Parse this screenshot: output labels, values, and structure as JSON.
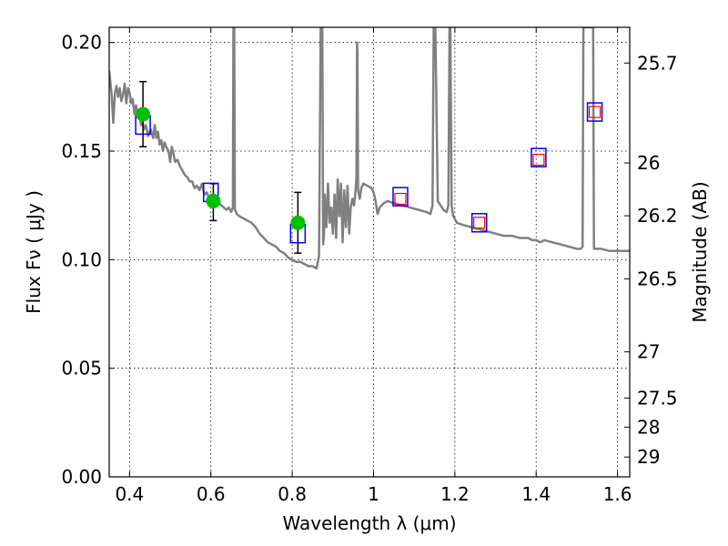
{
  "chart_data": {
    "type": "scatter",
    "xlabel": "Wavelength  λ (μm)",
    "ylabel": "Flux  Fν  ( μJy )",
    "y2label": "Magnitude (AB)",
    "xlim": [
      0.35,
      1.63
    ],
    "ylim": [
      0.0,
      0.207
    ],
    "grid": true,
    "x_ticks": [
      {
        "value": 0.4,
        "label": "0.4"
      },
      {
        "value": 0.6,
        "label": "0.6"
      },
      {
        "value": 0.8,
        "label": "0.8"
      },
      {
        "value": 1.0,
        "label": "1"
      },
      {
        "value": 1.2,
        "label": "1.2"
      },
      {
        "value": 1.4,
        "label": "1.4"
      },
      {
        "value": 1.6,
        "label": "1.6"
      }
    ],
    "y_ticks": [
      {
        "value": 0.0,
        "label": "0.00"
      },
      {
        "value": 0.05,
        "label": "0.05"
      },
      {
        "value": 0.1,
        "label": "0.10"
      },
      {
        "value": 0.15,
        "label": "0.15"
      },
      {
        "value": 0.2,
        "label": "0.20"
      }
    ],
    "mag_ticks": [
      {
        "value": 25.7,
        "label": "25.7"
      },
      {
        "value": 26.0,
        "label": "26"
      },
      {
        "value": 26.2,
        "label": "26.2"
      },
      {
        "value": 26.5,
        "label": "26.5"
      },
      {
        "value": 27.0,
        "label": "27"
      },
      {
        "value": 27.5,
        "label": "27.5"
      },
      {
        "value": 28.0,
        "label": "28"
      },
      {
        "value": 29.0,
        "label": "29"
      }
    ],
    "series": [
      {
        "kind": "sed_model_spectrum",
        "color": "#808080",
        "points": [
          [
            0.35,
            0.187
          ],
          [
            0.356,
            0.176
          ],
          [
            0.36,
            0.163
          ],
          [
            0.364,
            0.177
          ],
          [
            0.368,
            0.18
          ],
          [
            0.372,
            0.175
          ],
          [
            0.376,
            0.179
          ],
          [
            0.38,
            0.173
          ],
          [
            0.384,
            0.176
          ],
          [
            0.388,
            0.181
          ],
          [
            0.392,
            0.172
          ],
          [
            0.396,
            0.179
          ],
          [
            0.4,
            0.177
          ],
          [
            0.404,
            0.172
          ],
          [
            0.408,
            0.174
          ],
          [
            0.412,
            0.167
          ],
          [
            0.416,
            0.171
          ],
          [
            0.42,
            0.166
          ],
          [
            0.424,
            0.169
          ],
          [
            0.428,
            0.162
          ],
          [
            0.432,
            0.163
          ],
          [
            0.436,
            0.16
          ],
          [
            0.44,
            0.162
          ],
          [
            0.446,
            0.157
          ],
          [
            0.452,
            0.16
          ],
          [
            0.458,
            0.156
          ],
          [
            0.462,
            0.162
          ],
          [
            0.466,
            0.156
          ],
          [
            0.47,
            0.159
          ],
          [
            0.474,
            0.153
          ],
          [
            0.478,
            0.155
          ],
          [
            0.482,
            0.15
          ],
          [
            0.486,
            0.154
          ],
          [
            0.49,
            0.152
          ],
          [
            0.496,
            0.15
          ],
          [
            0.5,
            0.145
          ],
          [
            0.504,
            0.152
          ],
          [
            0.508,
            0.149
          ],
          [
            0.512,
            0.145
          ],
          [
            0.518,
            0.146
          ],
          [
            0.524,
            0.143
          ],
          [
            0.53,
            0.141
          ],
          [
            0.536,
            0.139
          ],
          [
            0.542,
            0.138
          ],
          [
            0.548,
            0.136
          ],
          [
            0.554,
            0.136
          ],
          [
            0.56,
            0.133
          ],
          [
            0.566,
            0.134
          ],
          [
            0.572,
            0.132
          ],
          [
            0.578,
            0.135
          ],
          [
            0.584,
            0.13
          ],
          [
            0.59,
            0.131
          ],
          [
            0.596,
            0.128
          ],
          [
            0.602,
            0.13
          ],
          [
            0.608,
            0.128
          ],
          [
            0.614,
            0.127
          ],
          [
            0.62,
            0.126
          ],
          [
            0.626,
            0.125
          ],
          [
            0.632,
            0.124
          ],
          [
            0.638,
            0.123
          ],
          [
            0.644,
            0.124
          ],
          [
            0.65,
            0.122
          ],
          [
            0.654,
            0.124
          ],
          [
            0.6555,
            0.207
          ],
          [
            0.6575,
            0.207
          ],
          [
            0.659,
            0.123
          ],
          [
            0.664,
            0.121
          ],
          [
            0.67,
            0.12
          ],
          [
            0.68,
            0.119
          ],
          [
            0.69,
            0.118
          ],
          [
            0.7,
            0.117
          ],
          [
            0.71,
            0.115
          ],
          [
            0.72,
            0.112
          ],
          [
            0.73,
            0.11
          ],
          [
            0.74,
            0.108
          ],
          [
            0.75,
            0.107
          ],
          [
            0.76,
            0.106
          ],
          [
            0.77,
            0.104
          ],
          [
            0.78,
            0.103
          ],
          [
            0.79,
            0.101
          ],
          [
            0.8,
            0.1
          ],
          [
            0.81,
            0.099
          ],
          [
            0.82,
            0.099
          ],
          [
            0.83,
            0.098
          ],
          [
            0.84,
            0.097
          ],
          [
            0.85,
            0.097
          ],
          [
            0.86,
            0.096
          ],
          [
            0.866,
            0.102
          ],
          [
            0.87,
            0.207
          ],
          [
            0.874,
            0.207
          ],
          [
            0.876,
            0.107
          ],
          [
            0.878,
            0.112
          ],
          [
            0.88,
            0.13
          ],
          [
            0.884,
            0.115
          ],
          [
            0.888,
            0.135
          ],
          [
            0.892,
            0.117
          ],
          [
            0.896,
            0.124
          ],
          [
            0.9,
            0.112
          ],
          [
            0.904,
            0.13
          ],
          [
            0.908,
            0.11
          ],
          [
            0.912,
            0.137
          ],
          [
            0.916,
            0.12
          ],
          [
            0.92,
            0.135
          ],
          [
            0.924,
            0.108
          ],
          [
            0.928,
            0.132
          ],
          [
            0.932,
            0.115
          ],
          [
            0.936,
            0.134
          ],
          [
            0.94,
            0.112
          ],
          [
            0.944,
            0.124
          ],
          [
            0.948,
            0.128
          ],
          [
            0.952,
            0.125
          ],
          [
            0.955,
            0.13
          ],
          [
            0.958,
            0.138
          ],
          [
            0.9595,
            0.2
          ],
          [
            0.9605,
            0.195
          ],
          [
            0.962,
            0.132
          ],
          [
            0.966,
            0.128
          ],
          [
            0.97,
            0.133
          ],
          [
            0.975,
            0.135
          ],
          [
            0.985,
            0.134
          ],
          [
            0.995,
            0.133
          ],
          [
            1.0,
            0.131
          ],
          [
            1.005,
            0.127
          ],
          [
            1.01,
            0.121
          ],
          [
            1.015,
            0.124
          ],
          [
            1.025,
            0.126
          ],
          [
            1.035,
            0.127
          ],
          [
            1.05,
            0.126
          ],
          [
            1.07,
            0.125
          ],
          [
            1.09,
            0.124
          ],
          [
            1.11,
            0.123
          ],
          [
            1.13,
            0.122
          ],
          [
            1.14,
            0.121
          ],
          [
            1.145,
            0.125
          ],
          [
            1.148,
            0.207
          ],
          [
            1.152,
            0.207
          ],
          [
            1.158,
            0.127
          ],
          [
            1.165,
            0.125
          ],
          [
            1.172,
            0.123
          ],
          [
            1.18,
            0.122
          ],
          [
            1.184,
            0.125
          ],
          [
            1.187,
            0.207
          ],
          [
            1.189,
            0.207
          ],
          [
            1.192,
            0.125
          ],
          [
            1.196,
            0.12
          ],
          [
            1.205,
            0.117
          ],
          [
            1.22,
            0.116
          ],
          [
            1.24,
            0.115
          ],
          [
            1.26,
            0.114
          ],
          [
            1.28,
            0.113
          ],
          [
            1.3,
            0.112
          ],
          [
            1.32,
            0.111
          ],
          [
            1.34,
            0.111
          ],
          [
            1.36,
            0.11
          ],
          [
            1.38,
            0.11
          ],
          [
            1.39,
            0.109
          ],
          [
            1.4,
            0.109
          ],
          [
            1.41,
            0.108
          ],
          [
            1.42,
            0.109
          ],
          [
            1.44,
            0.108
          ],
          [
            1.46,
            0.107
          ],
          [
            1.48,
            0.106
          ],
          [
            1.5,
            0.105
          ],
          [
            1.51,
            0.105
          ],
          [
            1.514,
            0.106
          ],
          [
            1.516,
            0.207
          ],
          [
            1.522,
            0.207
          ],
          [
            1.528,
            0.207
          ],
          [
            1.534,
            0.207
          ],
          [
            1.54,
            0.207
          ],
          [
            1.542,
            0.105
          ],
          [
            1.56,
            0.105
          ],
          [
            1.58,
            0.104
          ],
          [
            1.6,
            0.104
          ],
          [
            1.62,
            0.104
          ],
          [
            1.63,
            0.104
          ]
        ]
      },
      {
        "kind": "observed_photometry",
        "color": "#00c000",
        "points": [
          {
            "x": 0.433,
            "y": 0.167,
            "yerr_low": 0.152,
            "yerr_high": 0.182
          },
          {
            "x": 0.606,
            "y": 0.127,
            "yerr_low": 0.118,
            "yerr_high": 0.135
          },
          {
            "x": 0.814,
            "y": 0.117,
            "yerr_low": 0.103,
            "yerr_high": 0.131
          }
        ]
      },
      {
        "kind": "model_photometry",
        "color": "#0000ff",
        "points": [
          {
            "x": 0.433,
            "y": 0.162
          },
          {
            "x": 0.6,
            "y": 0.131
          },
          {
            "x": 0.814,
            "y": 0.112
          },
          {
            "x": 1.066,
            "y": 0.129
          },
          {
            "x": 1.26,
            "y": 0.117
          },
          {
            "x": 1.406,
            "y": 0.147
          },
          {
            "x": 1.544,
            "y": 0.168
          }
        ]
      },
      {
        "kind": "model_photometry_inner",
        "color": "#ff0000",
        "points": [
          {
            "x": 1.066,
            "y": 0.128
          },
          {
            "x": 1.26,
            "y": 0.117
          },
          {
            "x": 1.406,
            "y": 0.146
          },
          {
            "x": 1.544,
            "y": 0.168
          }
        ]
      }
    ]
  }
}
